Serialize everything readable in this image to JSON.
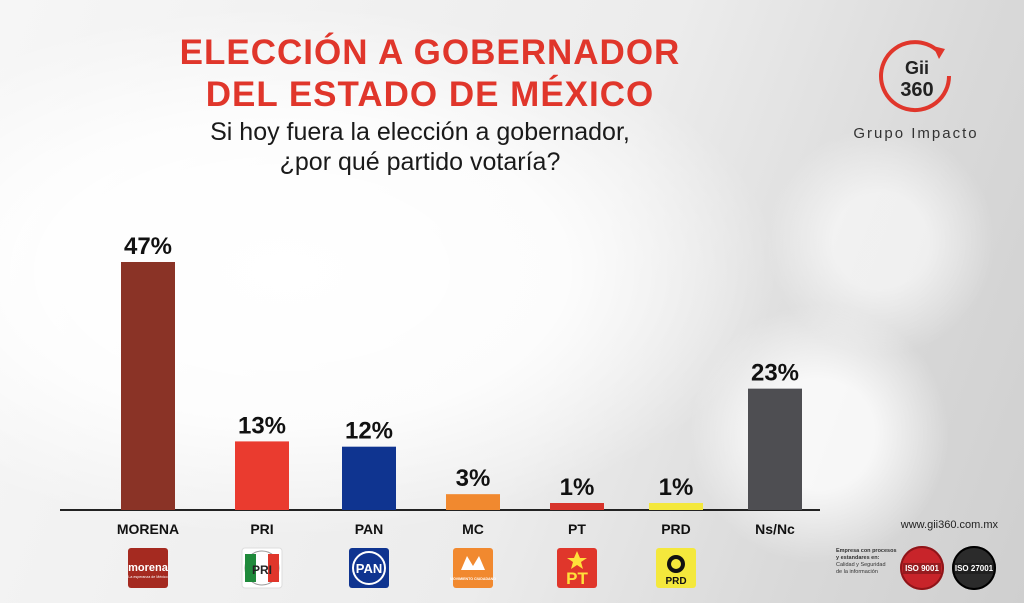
{
  "title_line1": "ELECCIÓN A GOBERNADOR",
  "title_line2": "DEL ESTADO DE MÉXICO",
  "subtitle_line1": "Si hoy fuera la elección a gobernador,",
  "subtitle_line2": "¿por qué partido votaría?",
  "brand": {
    "mark_top": "Gii",
    "mark_bottom": "360",
    "name": "Grupo Impacto",
    "accent": "#e0362b"
  },
  "footer": {
    "website": "www.gii360.com.mx",
    "cert_line1": "Empresa con procesos",
    "cert_line2": "y estandares en:",
    "cert_line3": "Calidad y Seguridad",
    "cert_line4": "de la información",
    "iso1": "ISO 9001",
    "iso2": "ISO 27001"
  },
  "chart_data": {
    "type": "bar",
    "categories": [
      "MORENA",
      "PRI",
      "PAN",
      "MC",
      "PT",
      "PRD",
      "Ns/Nc"
    ],
    "values": [
      47,
      13,
      12,
      3,
      1,
      1,
      23
    ],
    "data_labels": [
      "47%",
      "13%",
      "12%",
      "3%",
      "1%",
      "1%",
      "23%"
    ],
    "colors": [
      "#8a3326",
      "#ea3b2f",
      "#0f3490",
      "#f1892f",
      "#d7342b",
      "#f4e83c",
      "#4e4e52"
    ],
    "logos": [
      {
        "icon": "morena-logo",
        "text": "morena",
        "sub": "La esperanza de México",
        "bg": "#a52a20",
        "fg": "#ffffff"
      },
      {
        "icon": "pri-logo",
        "text": "PRI",
        "bg": "#ffffff",
        "fg": "#222222"
      },
      {
        "icon": "pan-logo",
        "text": "PAN",
        "bg": "#0f3490",
        "fg": "#ffffff"
      },
      {
        "icon": "mc-logo",
        "text": "MOVIMIENTO CIUDADANO",
        "bg": "#f1892f",
        "fg": "#ffffff"
      },
      {
        "icon": "pt-logo",
        "text": "PT",
        "bg": "#e0362b",
        "fg": "#ffe03a"
      },
      {
        "icon": "prd-logo",
        "text": "PRD",
        "bg": "#f4e83c",
        "fg": "#111111"
      },
      {
        "icon": "",
        "text": "",
        "bg": "",
        "fg": ""
      }
    ],
    "ylim": [
      0,
      50
    ]
  }
}
